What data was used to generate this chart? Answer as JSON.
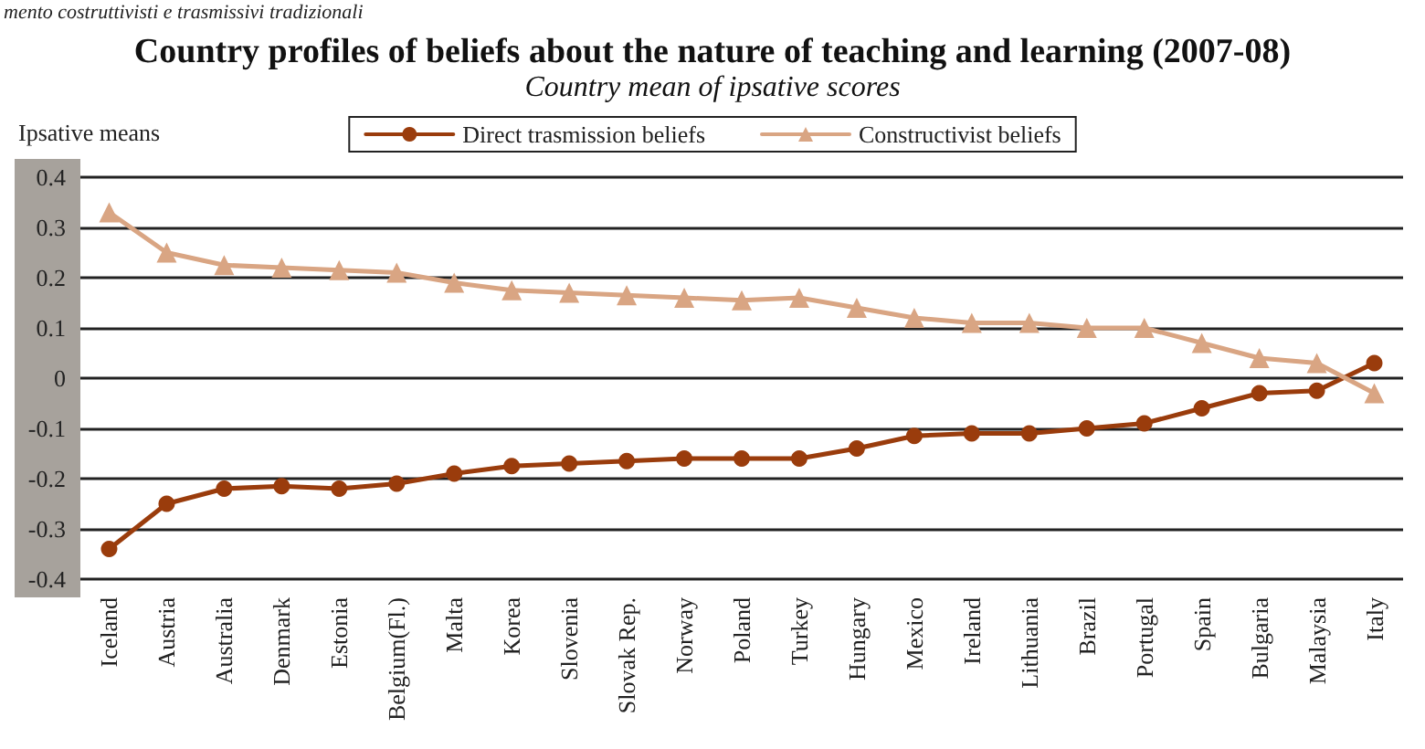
{
  "chart_data": {
    "type": "line",
    "title": "Country profiles of beliefs about the nature of teaching and learning (2007-08)",
    "subtitle": "Country mean of ipsative scores",
    "ylabel": "Ipsative means",
    "annotations": [
      "mento costruttivisti e trasmissivi tradizionali"
    ],
    "categories": [
      "Iceland",
      "Austria",
      "Australia",
      "Denmark",
      "Estonia",
      "Belgium(Fl.)",
      "Malta",
      "Korea",
      "Slovenia",
      "Slovak Rep.",
      "Norway",
      "Poland",
      "Turkey",
      "Hungary",
      "Mexico",
      "Ireland",
      "Lithuania",
      "Brazil",
      "Portugal",
      "Spain",
      "Bulgaria",
      "Malaysia",
      "Italy"
    ],
    "series": [
      {
        "name": "Direct trasmission beliefs",
        "color": "#9a3c0c",
        "marker": "circle",
        "values": [
          -0.34,
          -0.25,
          -0.22,
          -0.215,
          -0.22,
          -0.21,
          -0.19,
          -0.175,
          -0.17,
          -0.165,
          -0.16,
          -0.16,
          -0.16,
          -0.14,
          -0.115,
          -0.11,
          -0.11,
          -0.1,
          -0.09,
          -0.06,
          -0.03,
          -0.025,
          0.03
        ]
      },
      {
        "name": "Constructivist beliefs",
        "color": "#d9a583",
        "marker": "triangle",
        "values": [
          0.33,
          0.25,
          0.225,
          0.22,
          0.215,
          0.21,
          0.19,
          0.175,
          0.17,
          0.165,
          0.16,
          0.155,
          0.16,
          0.14,
          0.12,
          0.11,
          0.11,
          0.1,
          0.1,
          0.07,
          0.04,
          0.03,
          -0.03
        ]
      }
    ],
    "ylim": [
      -0.4,
      0.4
    ],
    "yticks": [
      -0.4,
      -0.3,
      -0.2,
      -0.1,
      0,
      0.1,
      0.2,
      0.3,
      0.4
    ],
    "grid": "y",
    "legend": "top",
    "line_style": "solid"
  }
}
